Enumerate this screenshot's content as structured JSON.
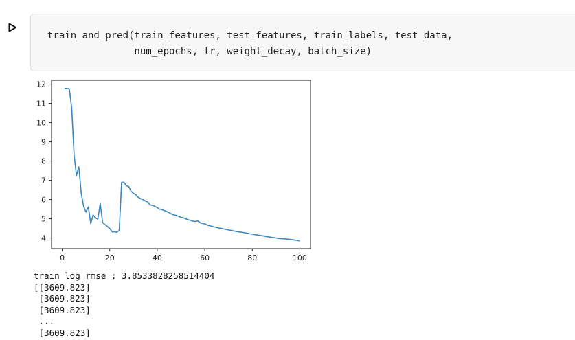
{
  "cell": {
    "run_icon": "play-icon",
    "code_lines": [
      "train_and_pred(train_features, test_features, train_labels, test_data,",
      "               num_epochs, lr, weight_decay, batch_size)"
    ]
  },
  "output": {
    "stdout_lines": [
      "train log rmse : 3.8533828258514404",
      "[[3609.823]",
      " [3609.823]",
      " [3609.823]",
      " ...",
      " [3609.823]"
    ]
  },
  "chart_data": {
    "type": "line",
    "title": "",
    "xlabel": "",
    "ylabel": "",
    "xlim": [
      -4.5,
      104.5
    ],
    "ylim": [
      3.45,
      12.2
    ],
    "xticks": [
      0,
      20,
      40,
      60,
      80,
      100
    ],
    "yticks": [
      4,
      5,
      6,
      7,
      8,
      9,
      10,
      11,
      12
    ],
    "grid": false,
    "color": "#3b87c0",
    "series": [
      {
        "x": [
          1,
          2,
          3,
          4,
          5,
          6,
          7,
          8,
          9,
          10,
          11,
          12,
          13,
          14,
          15,
          16,
          17,
          18,
          19,
          20,
          21,
          22,
          23,
          24,
          25,
          26,
          27,
          28,
          29,
          30,
          31,
          32,
          33,
          34,
          35,
          36,
          37,
          38,
          39,
          40,
          41,
          42,
          43,
          44,
          45,
          46,
          47,
          48,
          49,
          50,
          51,
          52,
          53,
          54,
          55,
          56,
          57,
          58,
          59,
          60,
          61,
          62,
          63,
          64,
          65,
          66,
          67,
          68,
          69,
          70,
          71,
          72,
          73,
          74,
          75,
          76,
          77,
          78,
          79,
          80,
          81,
          82,
          83,
          84,
          85,
          86,
          87,
          88,
          89,
          90,
          91,
          92,
          93,
          94,
          95,
          96,
          97,
          98,
          99,
          100
        ],
        "y": [
          11.78,
          11.78,
          11.76,
          10.75,
          8.3,
          7.25,
          7.7,
          6.35,
          5.65,
          5.35,
          5.62,
          4.75,
          5.2,
          5.05,
          4.98,
          5.8,
          4.8,
          4.7,
          4.6,
          4.5,
          4.32,
          4.32,
          4.3,
          4.4,
          6.9,
          6.9,
          6.72,
          6.68,
          6.42,
          6.32,
          6.25,
          6.12,
          6.05,
          6.0,
          5.92,
          5.88,
          5.72,
          5.7,
          5.65,
          5.58,
          5.5,
          5.48,
          5.42,
          5.38,
          5.32,
          5.25,
          5.2,
          5.18,
          5.12,
          5.08,
          5.05,
          5.0,
          4.95,
          4.92,
          4.88,
          4.86,
          4.9,
          4.8,
          4.76,
          4.74,
          4.68,
          4.64,
          4.61,
          4.58,
          4.55,
          4.52,
          4.5,
          4.47,
          4.45,
          4.42,
          4.4,
          4.37,
          4.35,
          4.33,
          4.31,
          4.29,
          4.27,
          4.25,
          4.22,
          4.2,
          4.18,
          4.16,
          4.14,
          4.12,
          4.1,
          4.08,
          4.06,
          4.04,
          4.02,
          4.0,
          3.98,
          3.97,
          3.96,
          3.95,
          3.94,
          3.93,
          3.91,
          3.89,
          3.87,
          3.85
        ]
      }
    ]
  }
}
